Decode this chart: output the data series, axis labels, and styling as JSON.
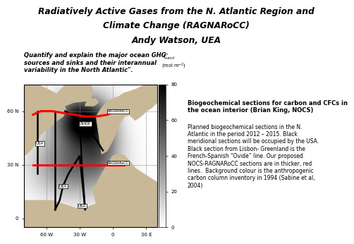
{
  "title_line1": "Radiatively Active Gases from the N. Atlantic Region and",
  "title_line2": "Climate Change (RAGNARoCC)",
  "title_line3": "Andy Watson, UEA",
  "subtitle": "Quantify and explain the major ocean GHG\nsources and sinks and their interannual\nvariability in the North Atlantic\".",
  "right_title": "Biogeochemical sections for carbon and CFCs in\nthe ocean interior (Brian King, NOCS)",
  "right_text": "Planned biogeochemical sections in the N.\nAtlantic in the period 2012 – 2015. Black\nmeridional sections will be occupied by the USA.\nBlack section from Lisbon- Greenland is the\nFrench-Spanish “Ovide” line. Our proposed\nNOCS-RAGNARoCC sections are in thicker, red\nlines.  Background colour is the anthropogenic\ncarbon column inventory in 1994 (Sabine et al,\n2004)",
  "colorbar_ticks": [
    0,
    20,
    40,
    60,
    80
  ],
  "bg_color": "#ffffff",
  "map_xlim": [
    -80,
    40
  ],
  "map_ylim": [
    -5,
    75
  ],
  "xticks": [
    -60,
    -30,
    0,
    30
  ],
  "xtick_labels": [
    "60 W",
    "30 W",
    "0",
    "30 E"
  ],
  "yticks": [
    0,
    30,
    60
  ],
  "ytick_labels": [
    "0",
    "30 N",
    "60 N"
  ]
}
